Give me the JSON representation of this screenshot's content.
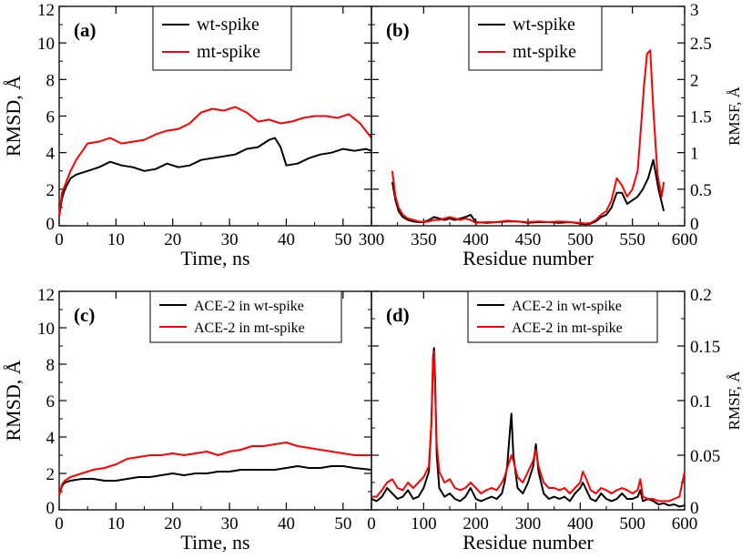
{
  "chart_data": [
    {
      "panel": "(a)",
      "type": "line",
      "xlabel": "Time, ns",
      "ylabel": "RMSD, Å",
      "xlim": [
        0,
        55
      ],
      "ylim": [
        0,
        12
      ],
      "x_ticks": [
        0,
        10,
        20,
        30,
        40,
        50
      ],
      "y_ticks": [
        0,
        2,
        4,
        6,
        8,
        10,
        12
      ],
      "y_tick_side": "left",
      "legend_position": "top-center",
      "series": [
        {
          "name": "wt-spike",
          "color": "#000000",
          "x": [
            0,
            0.5,
            1,
            2,
            3,
            5,
            7,
            9,
            11,
            13,
            15,
            17,
            19,
            21,
            23,
            25,
            27,
            29,
            31,
            33,
            35,
            37,
            38,
            39,
            40,
            42,
            44,
            46,
            48,
            50,
            52,
            54,
            55
          ],
          "y": [
            0.5,
            1.5,
            2.0,
            2.6,
            2.8,
            3.0,
            3.2,
            3.5,
            3.3,
            3.2,
            3.0,
            3.1,
            3.4,
            3.2,
            3.3,
            3.6,
            3.7,
            3.8,
            3.9,
            4.2,
            4.3,
            4.7,
            4.8,
            4.3,
            3.3,
            3.4,
            3.7,
            3.9,
            4.0,
            4.2,
            4.1,
            4.2,
            4.1
          ]
        },
        {
          "name": "mt-spike",
          "color": "#ff0000",
          "x": [
            0,
            0.5,
            1,
            2,
            3,
            5,
            7,
            9,
            11,
            13,
            15,
            17,
            19,
            21,
            23,
            25,
            27,
            29,
            31,
            33,
            35,
            37,
            39,
            41,
            43,
            45,
            47,
            49,
            51,
            53,
            55
          ],
          "y": [
            0.5,
            1.8,
            2.2,
            3.0,
            3.6,
            4.5,
            4.6,
            4.8,
            4.5,
            4.6,
            4.7,
            5.0,
            5.2,
            5.3,
            5.6,
            6.2,
            6.4,
            6.3,
            6.5,
            6.2,
            5.7,
            5.8,
            5.6,
            5.7,
            5.9,
            6.0,
            6.0,
            5.9,
            6.1,
            5.6,
            4.8
          ]
        }
      ]
    },
    {
      "panel": "(b)",
      "type": "line",
      "xlabel": "Residue number",
      "ylabel": "RMSF, Å",
      "xlim": [
        300,
        600
      ],
      "ylim": [
        0,
        3
      ],
      "x_ticks": [
        300,
        350,
        400,
        450,
        500,
        550,
        600
      ],
      "y_ticks": [
        0,
        0.5,
        1,
        1.5,
        2,
        2.5,
        3
      ],
      "y_tick_side": "right",
      "legend_position": "top-center",
      "series": [
        {
          "name": "wt-spike",
          "color": "#000000",
          "x": [
            320,
            323,
            326,
            330,
            335,
            340,
            345,
            350,
            355,
            360,
            365,
            370,
            375,
            380,
            385,
            390,
            395,
            400,
            410,
            420,
            430,
            440,
            450,
            460,
            470,
            480,
            490,
            500,
            505,
            510,
            515,
            520,
            525,
            530,
            535,
            540,
            545,
            550,
            555,
            560,
            565,
            570,
            575,
            580
          ],
          "y": [
            0.6,
            0.35,
            0.2,
            0.12,
            0.08,
            0.06,
            0.05,
            0.05,
            0.08,
            0.12,
            0.1,
            0.08,
            0.1,
            0.08,
            0.1,
            0.12,
            0.15,
            0.05,
            0.04,
            0.05,
            0.06,
            0.06,
            0.04,
            0.05,
            0.05,
            0.04,
            0.05,
            0.03,
            0.02,
            0.03,
            0.06,
            0.12,
            0.15,
            0.25,
            0.45,
            0.45,
            0.3,
            0.35,
            0.4,
            0.5,
            0.65,
            0.9,
            0.5,
            0.2
          ]
        },
        {
          "name": "mt-spike",
          "color": "#ff0000",
          "x": [
            320,
            323,
            326,
            330,
            335,
            340,
            345,
            350,
            355,
            360,
            365,
            370,
            375,
            380,
            385,
            390,
            395,
            400,
            410,
            420,
            430,
            440,
            450,
            460,
            470,
            480,
            490,
            500,
            505,
            510,
            515,
            520,
            525,
            530,
            535,
            540,
            545,
            550,
            555,
            558,
            561,
            564,
            567,
            570,
            574,
            578,
            580
          ],
          "y": [
            0.75,
            0.4,
            0.25,
            0.15,
            0.1,
            0.08,
            0.06,
            0.05,
            0.06,
            0.08,
            0.08,
            0.1,
            0.12,
            0.1,
            0.08,
            0.1,
            0.08,
            0.04,
            0.05,
            0.05,
            0.07,
            0.06,
            0.05,
            0.06,
            0.05,
            0.06,
            0.05,
            0.04,
            0.03,
            0.04,
            0.08,
            0.15,
            0.2,
            0.35,
            0.65,
            0.55,
            0.4,
            0.5,
            0.75,
            1.3,
            1.9,
            2.35,
            2.4,
            1.6,
            0.7,
            0.4,
            0.6
          ]
        }
      ]
    },
    {
      "panel": "(c)",
      "type": "line",
      "xlabel": "Time, ns",
      "ylabel": "RMSD, Å",
      "xlim": [
        0,
        55
      ],
      "ylim": [
        0,
        12
      ],
      "x_ticks": [
        0,
        10,
        20,
        30,
        40,
        50
      ],
      "y_ticks": [
        0,
        2,
        4,
        6,
        8,
        10,
        12
      ],
      "y_tick_side": "left",
      "legend_position": "top-right",
      "series": [
        {
          "name": "ACE-2 in wt-spike",
          "color": "#000000",
          "x": [
            0,
            0.5,
            1,
            2,
            4,
            6,
            8,
            10,
            12,
            14,
            16,
            18,
            20,
            22,
            24,
            26,
            28,
            30,
            32,
            34,
            36,
            38,
            40,
            42,
            44,
            46,
            48,
            50,
            52,
            55
          ],
          "y": [
            0.8,
            1.3,
            1.5,
            1.6,
            1.7,
            1.7,
            1.6,
            1.6,
            1.7,
            1.8,
            1.8,
            1.9,
            2.0,
            1.9,
            2.0,
            2.0,
            2.1,
            2.1,
            2.2,
            2.2,
            2.2,
            2.2,
            2.3,
            2.4,
            2.3,
            2.3,
            2.4,
            2.4,
            2.3,
            2.2
          ]
        },
        {
          "name": "ACE-2 in mt-spike",
          "color": "#ff0000",
          "x": [
            0,
            0.5,
            1,
            2,
            4,
            6,
            8,
            10,
            12,
            14,
            16,
            18,
            20,
            22,
            24,
            26,
            28,
            30,
            32,
            34,
            36,
            38,
            40,
            42,
            44,
            46,
            48,
            50,
            52,
            55
          ],
          "y": [
            0.8,
            1.4,
            1.6,
            1.8,
            2.0,
            2.2,
            2.3,
            2.5,
            2.8,
            2.9,
            3.0,
            3.0,
            3.1,
            3.0,
            3.1,
            3.2,
            3.0,
            3.2,
            3.3,
            3.5,
            3.5,
            3.6,
            3.7,
            3.5,
            3.4,
            3.3,
            3.2,
            3.1,
            3.0,
            3.0
          ]
        }
      ]
    },
    {
      "panel": "(d)",
      "type": "line",
      "xlabel": "Residue number",
      "ylabel": "RMSF, Å",
      "xlim": [
        0,
        600
      ],
      "ylim": [
        0,
        0.2
      ],
      "x_ticks": [
        0,
        100,
        200,
        300,
        400,
        500,
        600
      ],
      "y_ticks": [
        0,
        0.05,
        0.1,
        0.15,
        0.2
      ],
      "y_tick_side": "right",
      "legend_position": "top-right",
      "series": [
        {
          "name": "ACE-2 in wt-spike",
          "color": "#000000",
          "x": [
            0,
            10,
            20,
            30,
            40,
            50,
            60,
            70,
            80,
            90,
            100,
            110,
            115,
            118,
            120,
            122,
            125,
            130,
            140,
            150,
            160,
            170,
            180,
            190,
            200,
            210,
            220,
            230,
            240,
            250,
            255,
            260,
            265,
            268,
            272,
            280,
            290,
            300,
            310,
            315,
            320,
            330,
            340,
            350,
            360,
            370,
            380,
            390,
            400,
            405,
            410,
            420,
            430,
            440,
            450,
            460,
            470,
            480,
            490,
            500,
            510,
            515,
            520,
            530,
            540,
            550,
            560,
            570,
            580,
            590,
            600
          ],
          "y": [
            0.01,
            0.008,
            0.012,
            0.02,
            0.015,
            0.01,
            0.012,
            0.018,
            0.01,
            0.012,
            0.02,
            0.035,
            0.08,
            0.14,
            0.148,
            0.12,
            0.05,
            0.02,
            0.012,
            0.015,
            0.01,
            0.008,
            0.012,
            0.02,
            0.01,
            0.008,
            0.01,
            0.012,
            0.01,
            0.015,
            0.025,
            0.04,
            0.07,
            0.088,
            0.05,
            0.02,
            0.015,
            0.025,
            0.04,
            0.06,
            0.035,
            0.015,
            0.01,
            0.012,
            0.01,
            0.012,
            0.008,
            0.015,
            0.02,
            0.025,
            0.02,
            0.01,
            0.008,
            0.015,
            0.01,
            0.008,
            0.01,
            0.015,
            0.01,
            0.01,
            0.012,
            0.018,
            0.008,
            0.01,
            0.008,
            0.005,
            0.006,
            0.004,
            0.005,
            0.003,
            0.004
          ]
        },
        {
          "name": "ACE-2 in mt-spike",
          "color": "#ff0000",
          "x": [
            0,
            10,
            20,
            30,
            40,
            50,
            60,
            70,
            80,
            90,
            100,
            110,
            115,
            118,
            120,
            122,
            125,
            130,
            140,
            150,
            160,
            170,
            180,
            190,
            200,
            210,
            220,
            230,
            240,
            250,
            255,
            260,
            265,
            268,
            272,
            280,
            290,
            300,
            310,
            315,
            320,
            330,
            340,
            350,
            360,
            370,
            380,
            390,
            400,
            405,
            410,
            420,
            430,
            440,
            450,
            460,
            470,
            480,
            490,
            500,
            510,
            515,
            520,
            530,
            540,
            550,
            560,
            570,
            580,
            590,
            600
          ],
          "y": [
            0.012,
            0.012,
            0.018,
            0.025,
            0.028,
            0.02,
            0.018,
            0.025,
            0.02,
            0.025,
            0.03,
            0.04,
            0.08,
            0.135,
            0.145,
            0.11,
            0.06,
            0.035,
            0.025,
            0.028,
            0.02,
            0.018,
            0.02,
            0.025,
            0.02,
            0.015,
            0.018,
            0.02,
            0.018,
            0.025,
            0.03,
            0.038,
            0.045,
            0.05,
            0.045,
            0.03,
            0.025,
            0.035,
            0.045,
            0.055,
            0.04,
            0.025,
            0.02,
            0.02,
            0.018,
            0.02,
            0.015,
            0.02,
            0.025,
            0.035,
            0.03,
            0.018,
            0.015,
            0.02,
            0.018,
            0.015,
            0.018,
            0.02,
            0.018,
            0.015,
            0.018,
            0.028,
            0.012,
            0.01,
            0.01,
            0.008,
            0.008,
            0.008,
            0.01,
            0.012,
            0.035
          ]
        }
      ]
    }
  ]
}
